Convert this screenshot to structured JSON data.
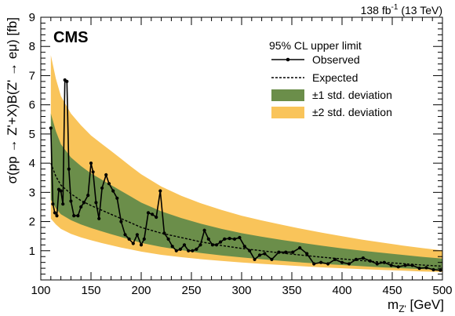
{
  "header": {
    "cms": "CMS",
    "lumi": "138 fb",
    "lumi_sup": "-1",
    "energy": " (13 TeV)"
  },
  "chart_data": {
    "type": "line",
    "xlabel": "m",
    "xlabel_sub": "Z'",
    "xlabel_unit": " [GeV]",
    "ylabel": "σ(pp → Z'+X)B(Z' → eμ) [fb]",
    "xlim": [
      100,
      500
    ],
    "ylim": [
      0,
      9
    ],
    "x_ticks": [
      100,
      150,
      200,
      250,
      300,
      350,
      400,
      450,
      500
    ],
    "y_ticks": [
      1,
      2,
      3,
      4,
      5,
      6,
      7,
      8,
      9
    ],
    "legend": {
      "title": "95% CL upper limit",
      "placement": "top-right",
      "entries": [
        "Observed",
        "Expected",
        "±1 std. deviation",
        "±2 std. deviation"
      ]
    },
    "band_x": [
      110,
      115,
      120,
      130,
      140,
      150,
      160,
      170,
      180,
      190,
      200,
      220,
      240,
      260,
      280,
      300,
      320,
      340,
      360,
      380,
      400,
      420,
      440,
      460,
      480,
      500
    ],
    "expected": [
      4.0,
      3.55,
      3.25,
      2.95,
      2.72,
      2.55,
      2.4,
      2.25,
      2.1,
      1.95,
      1.8,
      1.6,
      1.45,
      1.3,
      1.18,
      1.08,
      1.0,
      0.92,
      0.85,
      0.78,
      0.72,
      0.66,
      0.61,
      0.56,
      0.51,
      0.47
    ],
    "one_sigma_up": [
      5.7,
      5.1,
      4.65,
      4.2,
      3.9,
      3.65,
      3.45,
      3.25,
      3.05,
      2.85,
      2.65,
      2.35,
      2.12,
      1.92,
      1.75,
      1.6,
      1.48,
      1.37,
      1.27,
      1.17,
      1.08,
      1.0,
      0.93,
      0.86,
      0.79,
      0.73
    ],
    "one_sigma_down": [
      2.75,
      2.45,
      2.25,
      2.05,
      1.9,
      1.78,
      1.67,
      1.57,
      1.47,
      1.37,
      1.27,
      1.13,
      1.02,
      0.92,
      0.84,
      0.77,
      0.71,
      0.65,
      0.6,
      0.55,
      0.51,
      0.47,
      0.43,
      0.4,
      0.37,
      0.34
    ],
    "two_sigma_up": [
      7.7,
      6.9,
      6.3,
      5.7,
      5.3,
      4.95,
      4.68,
      4.42,
      4.15,
      3.88,
      3.62,
      3.2,
      2.88,
      2.62,
      2.4,
      2.2,
      2.04,
      1.89,
      1.75,
      1.62,
      1.5,
      1.38,
      1.28,
      1.18,
      1.09,
      1.01
    ],
    "two_sigma_down": [
      2.1,
      1.9,
      1.75,
      1.58,
      1.46,
      1.36,
      1.27,
      1.19,
      1.11,
      1.04,
      0.97,
      0.86,
      0.78,
      0.71,
      0.65,
      0.6,
      0.55,
      0.51,
      0.47,
      0.43,
      0.4,
      0.37,
      0.34,
      0.32,
      0.29,
      0.27
    ],
    "observed": {
      "x": [
        110,
        112,
        114,
        116,
        118,
        120,
        122,
        124,
        126,
        128,
        130,
        133,
        137,
        140,
        143,
        147,
        150,
        152,
        155,
        158,
        161,
        165,
        168,
        172,
        176,
        180,
        184,
        188,
        192,
        196,
        200,
        203,
        207,
        211,
        215,
        219,
        223,
        227,
        231,
        235,
        239,
        243,
        247,
        251,
        255,
        259,
        263,
        267,
        271,
        275,
        279,
        283,
        288,
        293,
        298,
        303,
        308,
        313,
        318,
        323,
        330,
        337,
        344,
        351,
        358,
        365,
        372,
        379,
        386,
        393,
        400,
        407,
        414,
        421,
        428,
        435,
        442,
        449,
        456,
        463,
        470,
        477,
        484,
        491,
        498
      ],
      "y": [
        5.2,
        2.6,
        2.3,
        2.2,
        3.1,
        3.05,
        2.6,
        6.85,
        6.8,
        3.8,
        2.7,
        2.2,
        2.2,
        2.5,
        2.65,
        2.9,
        4.0,
        3.7,
        2.65,
        2.1,
        3.15,
        3.6,
        3.3,
        3.05,
        2.8,
        2.0,
        1.55,
        1.4,
        1.25,
        1.55,
        1.2,
        1.4,
        2.3,
        2.25,
        2.15,
        3.05,
        1.6,
        1.4,
        1.15,
        1.0,
        1.05,
        1.2,
        1.0,
        1.0,
        1.05,
        1.2,
        1.7,
        1.4,
        1.2,
        1.2,
        1.3,
        1.4,
        1.42,
        1.4,
        1.45,
        1.15,
        1.0,
        0.7,
        0.85,
        0.9,
        0.7,
        0.95,
        0.95,
        0.95,
        1.1,
        0.9,
        0.55,
        0.6,
        0.55,
        0.7,
        0.6,
        0.55,
        0.7,
        0.75,
        0.65,
        0.55,
        0.6,
        0.5,
        0.45,
        0.5,
        0.5,
        0.4,
        0.42,
        0.35,
        0.33
      ]
    },
    "colors": {
      "two_sigma": "#f9c45a",
      "one_sigma": "#6b8e4a",
      "observed": "#000000",
      "expected": "#000000"
    }
  }
}
